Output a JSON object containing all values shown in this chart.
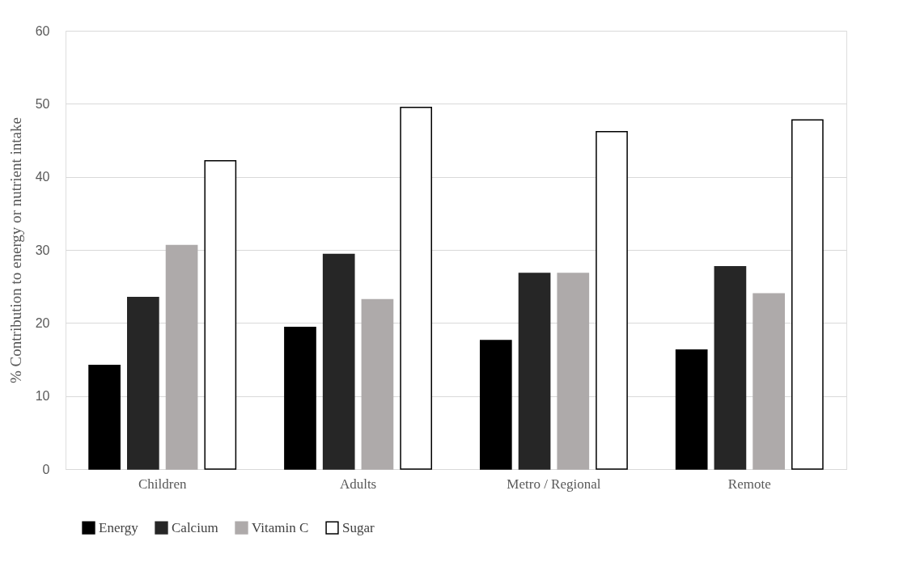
{
  "chart_data": {
    "type": "bar",
    "ylabel": "% Contribution to energy or nutrient intake",
    "categories": [
      "Children",
      "Adults",
      "Metro / Regional",
      "Remote"
    ],
    "series": [
      {
        "name": "Energy",
        "color": "#000000",
        "values": [
          14.2,
          19.4,
          17.6,
          16.3
        ]
      },
      {
        "name": "Calcium",
        "color": "#262626",
        "values": [
          23.5,
          29.4,
          26.8,
          27.7
        ]
      },
      {
        "name": "Vitamin C",
        "color": "#aeaaaa",
        "values": [
          30.6,
          23.2,
          26.8,
          24.0
        ]
      },
      {
        "name": "Sugar",
        "color": "#ffffff",
        "values": [
          42.2,
          49.5,
          46.2,
          47.8
        ]
      }
    ],
    "ylim": [
      0,
      60
    ],
    "yticks": [
      0,
      10,
      20,
      30,
      40,
      50,
      60
    ],
    "grid": "y",
    "legend": "bottom"
  }
}
